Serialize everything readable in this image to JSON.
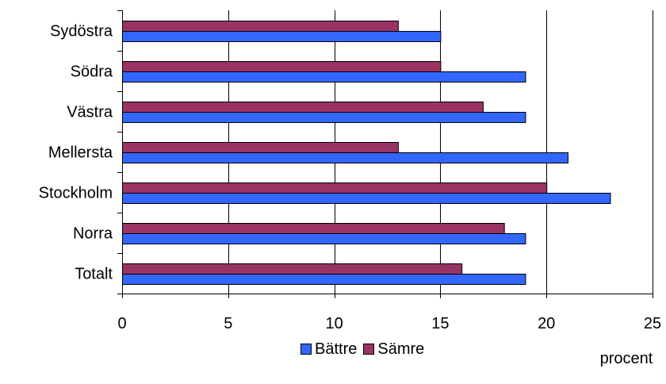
{
  "chart_data": {
    "type": "bar",
    "orientation": "horizontal",
    "categories": [
      "Sydöstra",
      "Södra",
      "Västra",
      "Mellersta",
      "Stockholm",
      "Norra",
      "Totalt"
    ],
    "series": [
      {
        "name": "Sämre",
        "color": "#993366",
        "values": [
          13,
          15,
          17,
          13,
          20,
          18,
          16
        ]
      },
      {
        "name": "Bättre",
        "color": "#3366FF",
        "values": [
          15,
          19,
          19,
          21,
          23,
          19,
          19
        ]
      }
    ],
    "xlim": [
      0,
      25
    ],
    "x_ticks": [
      "0",
      "5",
      "10",
      "15",
      "20",
      "25"
    ],
    "xlabel": "procent",
    "grid": "vertical",
    "legend": "bottom"
  }
}
